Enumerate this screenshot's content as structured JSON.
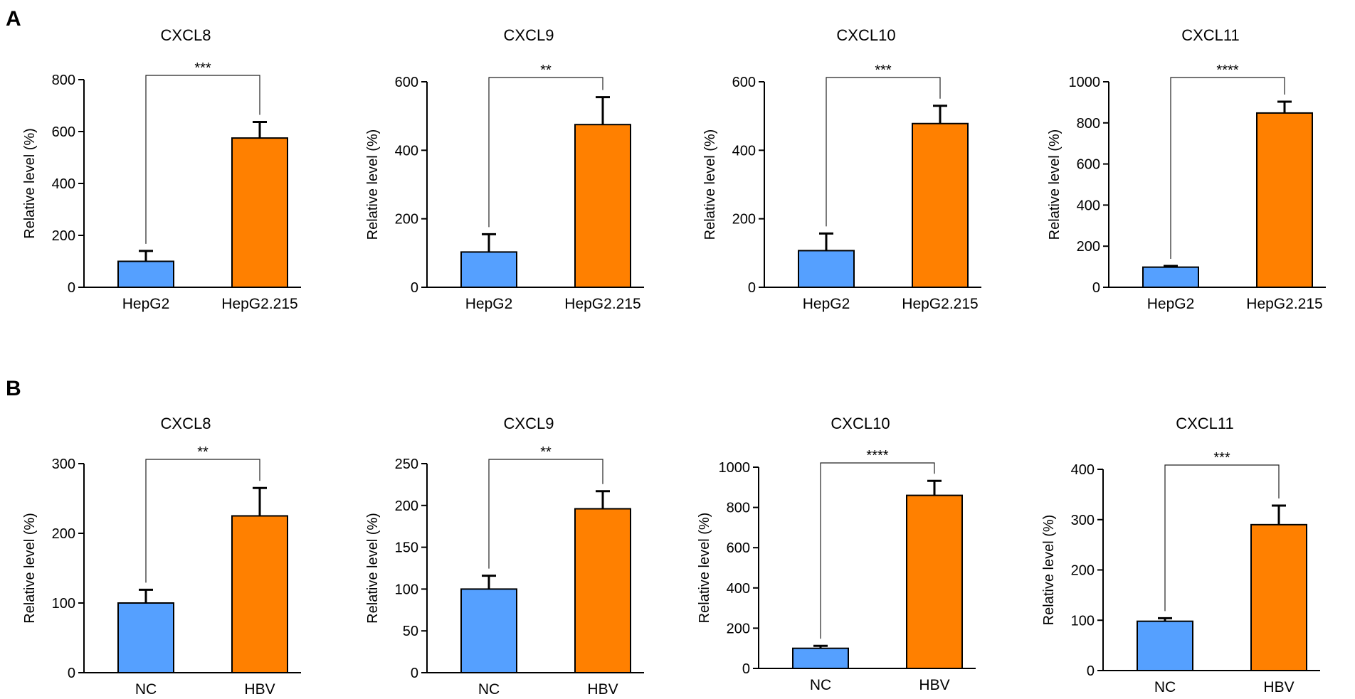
{
  "panels": [
    {
      "letter": "A"
    },
    {
      "letter": "B"
    }
  ],
  "colors": {
    "control": "#55a0ff",
    "treated": "#ff8000",
    "axis": "#000000"
  },
  "chart_data": [
    {
      "panel": "A",
      "type": "bar",
      "title": "CXCL8",
      "ylabel": "Relative level (%)",
      "categories": [
        "HepG2",
        "HepG2.215"
      ],
      "values": [
        100,
        575
      ],
      "errors": [
        40,
        62
      ],
      "ylim": [
        0,
        800
      ],
      "yticks": [
        0,
        200,
        400,
        600,
        800
      ],
      "ytick_labels": [
        "0",
        "200",
        "400",
        "600",
        "800"
      ],
      "significance": "***"
    },
    {
      "panel": "A",
      "type": "bar",
      "title": "CXCL9",
      "ylabel": "Relative level (%)",
      "categories": [
        "HepG2",
        "HepG2.215"
      ],
      "values": [
        103,
        475
      ],
      "errors": [
        52,
        80
      ],
      "ylim": [
        0,
        600
      ],
      "yticks": [
        0,
        200,
        400,
        600
      ],
      "ytick_labels": [
        "0",
        "200",
        "400",
        "600"
      ],
      "significance": "**"
    },
    {
      "panel": "A",
      "type": "bar",
      "title": "CXCL10",
      "ylabel": "Relative level (%)",
      "categories": [
        "HepG2",
        "HepG2.215"
      ],
      "values": [
        107,
        478
      ],
      "errors": [
        50,
        52
      ],
      "ylim": [
        0,
        600
      ],
      "yticks": [
        0,
        200,
        400,
        600
      ],
      "ytick_labels": [
        "0",
        "200",
        "400",
        "600"
      ],
      "significance": "***"
    },
    {
      "panel": "A",
      "type": "bar",
      "title": "CXCL11",
      "ylabel": "Relative level (%)",
      "categories": [
        "HepG2",
        "HepG2.215"
      ],
      "values": [
        98,
        848
      ],
      "errors": [
        6,
        55
      ],
      "ylim": [
        0,
        1000
      ],
      "yticks": [
        0,
        200,
        400,
        600,
        800,
        1000
      ],
      "ytick_labels": [
        "0",
        "200",
        "400",
        "600",
        "800",
        "1000"
      ],
      "significance": "****"
    },
    {
      "panel": "B",
      "type": "bar",
      "title": "CXCL8",
      "ylabel": "Relative level (%)",
      "categories": [
        "NC",
        "HBV"
      ],
      "values": [
        100,
        225
      ],
      "errors": [
        19,
        40
      ],
      "ylim": [
        0,
        300
      ],
      "yticks": [
        0,
        100,
        200,
        300
      ],
      "ytick_labels": [
        "0",
        "100",
        "200",
        "300"
      ],
      "significance": "**"
    },
    {
      "panel": "B",
      "type": "bar",
      "title": "CXCL9",
      "ylabel": "Relative level (%)",
      "categories": [
        "NC",
        "HBV"
      ],
      "values": [
        100,
        196
      ],
      "errors": [
        16,
        21
      ],
      "ylim": [
        0,
        250
      ],
      "yticks": [
        0,
        50,
        100,
        150,
        200,
        250
      ],
      "ytick_labels": [
        "0",
        "50",
        "100",
        "150",
        "200",
        "250"
      ],
      "significance": "**"
    },
    {
      "panel": "B",
      "type": "bar",
      "title": "CXCL10",
      "ylabel": "Relative level (%)",
      "categories": [
        "NC",
        "HBV"
      ],
      "values": [
        100,
        860
      ],
      "errors": [
        12,
        72
      ],
      "ylim": [
        0,
        1000
      ],
      "yticks": [
        0,
        200,
        400,
        600,
        800,
        1000
      ],
      "ytick_labels": [
        "0",
        "200",
        "400",
        "600",
        "800",
        "1000"
      ],
      "significance": "****"
    },
    {
      "panel": "B",
      "type": "bar",
      "title": "CXCL11",
      "ylabel": "Relative level (%)",
      "categories": [
        "NC",
        "HBV"
      ],
      "values": [
        98,
        290
      ],
      "errors": [
        6,
        38
      ],
      "ylim": [
        0,
        400
      ],
      "yticks": [
        0,
        100,
        200,
        300,
        400
      ],
      "ytick_labels": [
        "0",
        "100",
        "200",
        "300",
        "400"
      ],
      "significance": "***"
    }
  ]
}
